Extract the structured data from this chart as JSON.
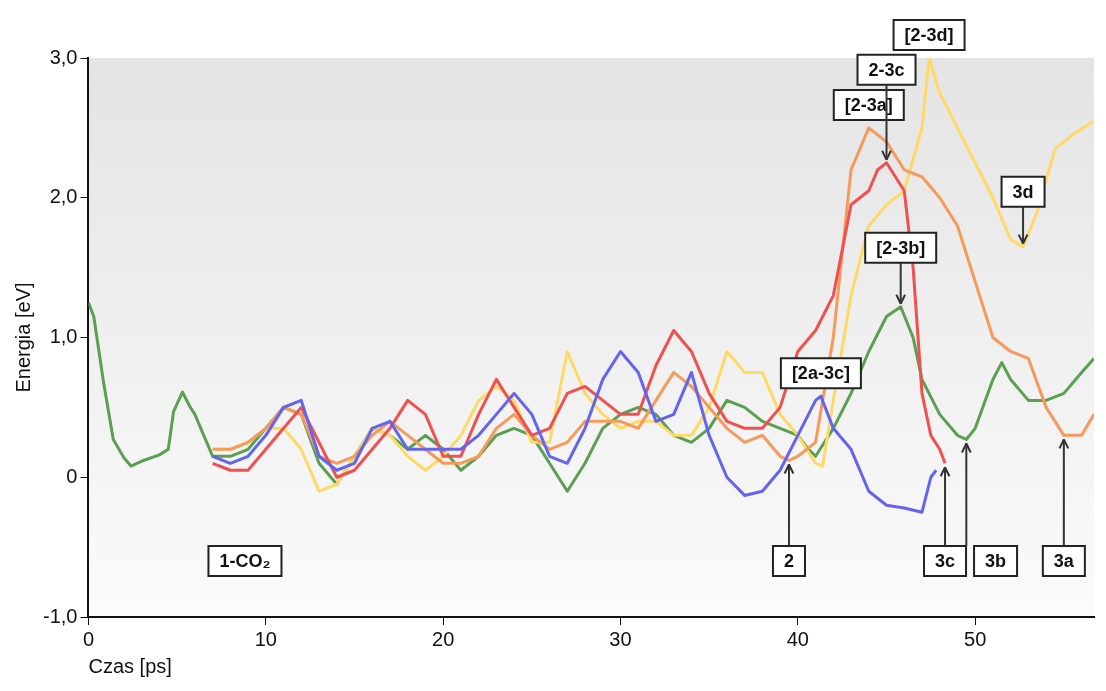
{
  "chart_data": {
    "type": "line",
    "xlabel": "Czas [ps]",
    "ylabel": "Energia [eV]",
    "xlim": [
      0,
      56.7
    ],
    "xticks": [
      0,
      10,
      20,
      30,
      40,
      50
    ],
    "ylim": [
      -1,
      3
    ],
    "yticks": [
      {
        "value": 3,
        "label": "3,0"
      },
      {
        "value": 2,
        "label": "2,0"
      },
      {
        "value": 1,
        "label": "1,0"
      },
      0,
      {
        "value": -1,
        "label": "-1,0"
      }
    ],
    "grid": false,
    "series": [
      {
        "color": "#6464f0",
        "x": [
          7,
          8,
          9,
          10,
          11,
          12,
          13,
          14,
          15,
          16,
          17,
          18,
          19,
          20,
          21,
          22,
          23,
          24,
          25,
          26,
          27,
          28,
          29,
          30,
          31,
          32,
          33,
          34,
          35,
          36,
          37,
          38,
          39,
          40,
          41,
          41.3,
          42,
          43,
          44,
          45,
          46,
          47,
          47.5,
          47.8
        ],
        "values": [
          0.15,
          0.1,
          0.15,
          0.3,
          0.5,
          0.55,
          0.15,
          0.05,
          0.1,
          0.35,
          0.4,
          0.2,
          0.2,
          0.2,
          0.2,
          0.3,
          0.45,
          0.6,
          0.45,
          0.15,
          0.1,
          0.35,
          0.7,
          0.9,
          0.75,
          0.4,
          0.45,
          0.75,
          0.3,
          0,
          -0.13,
          -0.1,
          0.05,
          0.3,
          0.55,
          0.58,
          0.35,
          0.2,
          -0.1,
          -0.2,
          -0.22,
          -0.25,
          0,
          0.05
        ]
      },
      {
        "color": "#f05050",
        "x": [
          7,
          8,
          9,
          10,
          11,
          12,
          13,
          14,
          15,
          16,
          17,
          18,
          19,
          20,
          21,
          22,
          23,
          24,
          25,
          26,
          27,
          28,
          29,
          30,
          31,
          32,
          33,
          34,
          35,
          36,
          37,
          38,
          39,
          40,
          41,
          42,
          43,
          44,
          44.5,
          45,
          46,
          46.5,
          47,
          47.5,
          48,
          48.3
        ],
        "values": [
          0.1,
          0.05,
          0.05,
          0.2,
          0.35,
          0.5,
          0.25,
          0,
          0.05,
          0.2,
          0.35,
          0.55,
          0.45,
          0.15,
          0.15,
          0.45,
          0.7,
          0.5,
          0.3,
          0.35,
          0.6,
          0.65,
          0.55,
          0.45,
          0.45,
          0.8,
          1.05,
          0.9,
          0.6,
          0.4,
          0.35,
          0.35,
          0.5,
          0.9,
          1.05,
          1.3,
          1.95,
          2.05,
          2.2,
          2.25,
          2.05,
          1.5,
          0.6,
          0.3,
          0.2,
          0.1
        ]
      },
      {
        "color": "#f59a5a",
        "x": [
          7,
          8,
          9,
          10,
          11,
          12,
          13,
          14,
          15,
          16,
          17,
          18,
          19,
          20,
          21,
          22,
          23,
          24,
          25,
          26,
          27,
          28,
          29,
          30,
          31,
          32,
          33,
          34,
          35,
          36,
          37,
          38,
          39,
          39.5,
          40,
          41,
          42,
          43,
          44,
          45,
          46,
          47,
          48,
          49,
          50,
          51,
          52,
          53,
          54,
          55,
          56,
          56.7
        ],
        "values": [
          0.2,
          0.2,
          0.25,
          0.35,
          0.5,
          0.45,
          0.15,
          0.1,
          0.15,
          0.3,
          0.4,
          0.3,
          0.2,
          0.1,
          0.1,
          0.15,
          0.35,
          0.45,
          0.3,
          0.2,
          0.25,
          0.4,
          0.4,
          0.4,
          0.35,
          0.55,
          0.75,
          0.65,
          0.5,
          0.35,
          0.25,
          0.3,
          0.15,
          0.12,
          0.15,
          0.25,
          1.0,
          2.2,
          2.5,
          2.4,
          2.2,
          2.15,
          2.0,
          1.8,
          1.4,
          1.0,
          0.9,
          0.85,
          0.5,
          0.3,
          0.3,
          0.45
        ]
      },
      {
        "color": "#ffd966",
        "x": [
          7,
          8,
          9,
          10,
          11,
          12,
          13,
          14,
          15,
          16,
          17,
          18,
          19,
          20,
          21,
          22,
          23,
          24,
          25,
          26,
          27,
          28,
          29,
          30,
          31,
          32,
          33,
          34,
          35,
          36,
          37,
          38,
          39,
          40,
          41,
          41.4,
          42,
          43,
          44,
          45,
          46,
          47,
          47.4,
          48,
          49,
          50,
          51,
          52,
          52.7,
          53.5,
          54.5,
          55.5,
          56.7
        ],
        "values": [
          0.2,
          0.2,
          0.25,
          0.35,
          0.35,
          0.2,
          -0.1,
          -0.05,
          0.15,
          0.35,
          0.3,
          0.15,
          0.05,
          0.15,
          0.3,
          0.55,
          0.65,
          0.55,
          0.25,
          0.25,
          0.9,
          0.6,
          0.45,
          0.35,
          0.4,
          0.4,
          0.3,
          0.3,
          0.5,
          0.9,
          0.75,
          0.75,
          0.45,
          0.3,
          0.1,
          0.08,
          0.55,
          1.3,
          1.8,
          1.95,
          2.05,
          2.5,
          3.0,
          2.75,
          2.5,
          2.25,
          2.0,
          1.7,
          1.65,
          1.9,
          2.35,
          2.45,
          2.55
        ]
      },
      {
        "color": "#5aa050",
        "x": [
          0,
          0.3,
          0.85,
          1.4,
          2,
          2.4,
          3.1,
          4,
          4.5,
          4.8,
          5.3,
          5.7,
          6,
          7,
          8,
          9,
          10,
          11,
          12,
          13,
          14,
          15,
          16,
          17,
          18,
          19,
          20,
          21,
          22,
          23,
          24,
          25,
          26,
          27,
          28,
          29,
          30,
          31,
          32,
          33,
          34,
          35,
          36,
          37,
          38,
          39,
          40,
          40.6,
          41,
          42,
          43,
          44,
          45,
          45.8,
          46.5,
          47,
          48,
          49,
          49.5,
          50,
          51,
          51.5,
          52,
          53,
          54,
          55,
          56,
          56.7
        ],
        "values": [
          1.25,
          1.15,
          0.68,
          0.27,
          0.14,
          0.08,
          0.12,
          0.16,
          0.2,
          0.47,
          0.61,
          0.51,
          0.45,
          0.15,
          0.15,
          0.2,
          0.35,
          0.5,
          0.45,
          0.1,
          -0.05,
          0.15,
          0.35,
          0.3,
          0.2,
          0.3,
          0.2,
          0.05,
          0.15,
          0.3,
          0.35,
          0.3,
          0.1,
          -0.1,
          0.1,
          0.35,
          0.45,
          0.5,
          0.45,
          0.3,
          0.25,
          0.35,
          0.55,
          0.5,
          0.4,
          0.35,
          0.3,
          0.2,
          0.15,
          0.35,
          0.6,
          0.9,
          1.15,
          1.22,
          1.0,
          0.7,
          0.45,
          0.3,
          0.27,
          0.35,
          0.7,
          0.82,
          0.7,
          0.55,
          0.55,
          0.6,
          0.75,
          0.85
        ]
      }
    ],
    "annotations": [
      "1-CO₂",
      {
        "text": "2",
        "x": 39.5,
        "y": 0.12
      },
      {
        "text": "[2a-3c]",
        "x": 41.3,
        "y": 0.58
      },
      {
        "text": "[2-3a]",
        "x": 44,
        "y": 2.5
      },
      {
        "text": "2-3c",
        "x": 45,
        "y": 2.25
      },
      {
        "text": "[2-3d]",
        "x": 47.4,
        "y": 3.0
      },
      {
        "text": "[2-3b]",
        "x": 45.8,
        "y": 1.22
      },
      {
        "text": "3c",
        "x": 48.3,
        "y": 0.1
      },
      {
        "text": "3b",
        "x": 49.5,
        "y": 0.27
      },
      {
        "text": "3d",
        "x": 52.7,
        "y": 1.65
      },
      {
        "text": "3a",
        "x": 55,
        "y": 0.3
      }
    ]
  }
}
